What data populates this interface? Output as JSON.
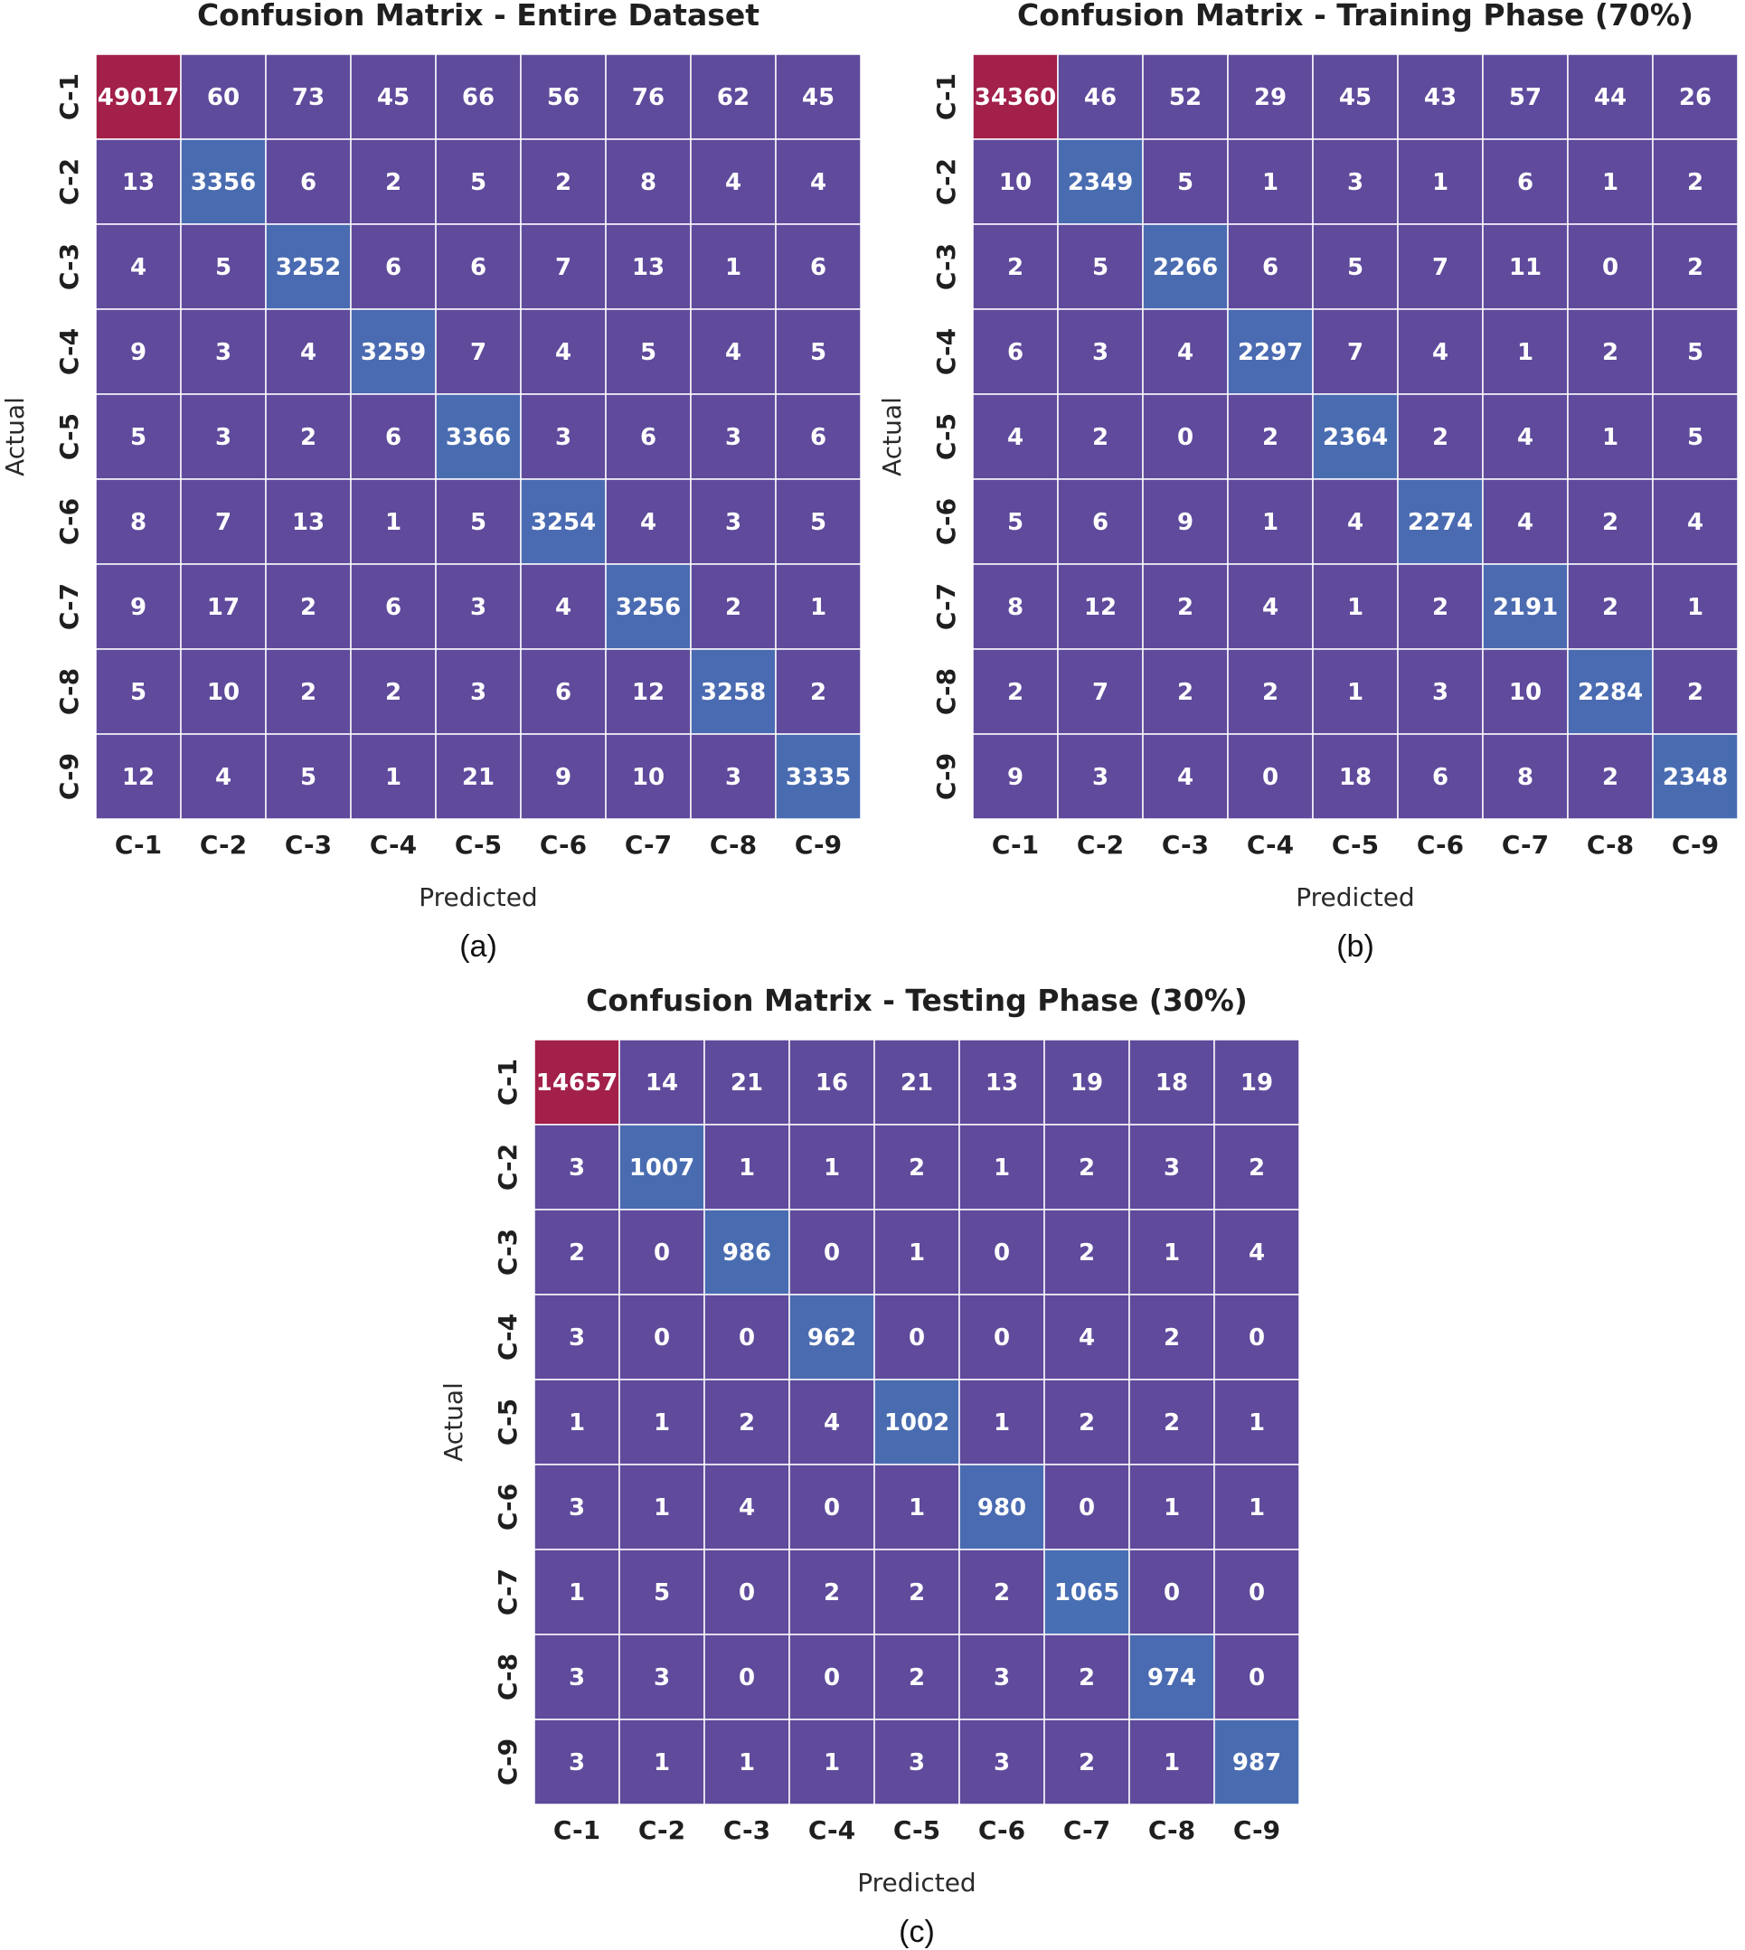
{
  "chart_data": [
    {
      "type": "heatmap",
      "title": "Confusion Matrix - Entire Dataset",
      "caption": "(a)",
      "xlabel": "Predicted",
      "ylabel": "Actual",
      "x_categories": [
        "C-1",
        "C-2",
        "C-3",
        "C-4",
        "C-5",
        "C-6",
        "C-7",
        "C-8",
        "C-9"
      ],
      "y_categories": [
        "C-1",
        "C-2",
        "C-3",
        "C-4",
        "C-5",
        "C-6",
        "C-7",
        "C-8",
        "C-9"
      ],
      "values": [
        [
          49017,
          60,
          73,
          45,
          66,
          56,
          76,
          62,
          45
        ],
        [
          13,
          3356,
          6,
          2,
          5,
          2,
          8,
          4,
          4
        ],
        [
          4,
          5,
          3252,
          6,
          6,
          7,
          13,
          1,
          6
        ],
        [
          9,
          3,
          4,
          3259,
          7,
          4,
          5,
          4,
          5
        ],
        [
          5,
          3,
          2,
          6,
          3366,
          3,
          6,
          3,
          6
        ],
        [
          8,
          7,
          13,
          1,
          5,
          3254,
          4,
          3,
          5
        ],
        [
          9,
          17,
          2,
          6,
          3,
          4,
          3256,
          2,
          1
        ],
        [
          5,
          10,
          2,
          2,
          3,
          6,
          12,
          3258,
          2
        ],
        [
          12,
          4,
          5,
          1,
          21,
          9,
          10,
          3,
          3335
        ]
      ]
    },
    {
      "type": "heatmap",
      "title": "Confusion Matrix - Training Phase (70%)",
      "caption": "(b)",
      "xlabel": "Predicted",
      "ylabel": "Actual",
      "x_categories": [
        "C-1",
        "C-2",
        "C-3",
        "C-4",
        "C-5",
        "C-6",
        "C-7",
        "C-8",
        "C-9"
      ],
      "y_categories": [
        "C-1",
        "C-2",
        "C-3",
        "C-4",
        "C-5",
        "C-6",
        "C-7",
        "C-8",
        "C-9"
      ],
      "values": [
        [
          34360,
          46,
          52,
          29,
          45,
          43,
          57,
          44,
          26
        ],
        [
          10,
          2349,
          5,
          1,
          3,
          1,
          6,
          1,
          2
        ],
        [
          2,
          5,
          2266,
          6,
          5,
          7,
          11,
          0,
          2
        ],
        [
          6,
          3,
          4,
          2297,
          7,
          4,
          1,
          2,
          5
        ],
        [
          4,
          2,
          0,
          2,
          2364,
          2,
          4,
          1,
          5
        ],
        [
          5,
          6,
          9,
          1,
          4,
          2274,
          4,
          2,
          4
        ],
        [
          8,
          12,
          2,
          4,
          1,
          2,
          2191,
          2,
          1
        ],
        [
          2,
          7,
          2,
          2,
          1,
          3,
          10,
          2284,
          2
        ],
        [
          9,
          3,
          4,
          0,
          18,
          6,
          8,
          2,
          2348
        ]
      ]
    },
    {
      "type": "heatmap",
      "title": "Confusion Matrix - Testing Phase (30%)",
      "caption": "(c)",
      "xlabel": "Predicted",
      "ylabel": "Actual",
      "x_categories": [
        "C-1",
        "C-2",
        "C-3",
        "C-4",
        "C-5",
        "C-6",
        "C-7",
        "C-8",
        "C-9"
      ],
      "y_categories": [
        "C-1",
        "C-2",
        "C-3",
        "C-4",
        "C-5",
        "C-6",
        "C-7",
        "C-8",
        "C-9"
      ],
      "values": [
        [
          14657,
          14,
          21,
          16,
          21,
          13,
          19,
          18,
          19
        ],
        [
          3,
          1007,
          1,
          1,
          2,
          1,
          2,
          3,
          2
        ],
        [
          2,
          0,
          986,
          0,
          1,
          0,
          2,
          1,
          4
        ],
        [
          3,
          0,
          0,
          962,
          0,
          0,
          4,
          2,
          0
        ],
        [
          1,
          1,
          2,
          4,
          1002,
          1,
          2,
          2,
          1
        ],
        [
          3,
          1,
          4,
          0,
          1,
          980,
          0,
          1,
          1
        ],
        [
          1,
          5,
          0,
          2,
          2,
          2,
          1065,
          0,
          0
        ],
        [
          3,
          3,
          0,
          0,
          2,
          3,
          2,
          974,
          0
        ],
        [
          3,
          1,
          1,
          1,
          3,
          3,
          2,
          1,
          987
        ]
      ]
    }
  ],
  "colors": {
    "low": "#5f4a9c",
    "mid": "#3f7cbb",
    "high": "#a2204a",
    "gridline": "#ffffff",
    "text": "#ffffff"
  }
}
